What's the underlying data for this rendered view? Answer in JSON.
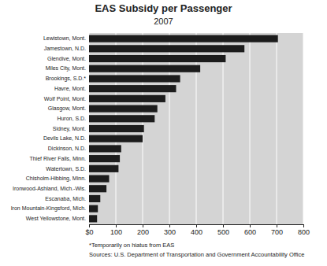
{
  "chart_data": {
    "type": "bar",
    "orientation": "horizontal",
    "title": "EAS Subsidy per Passenger",
    "subtitle": "2007",
    "categories": [
      "Lewistown, Mont.",
      "Jamestown, N.D.",
      "Glendive, Mont.",
      "Miles City, Mont.",
      "Brookings, S.D.*",
      "Havre, Mont.",
      "Wolf Point, Mont.",
      "Glasgow, Mont.",
      "Huron, S.D.",
      "Sidney, Mont.",
      "Devils Lake, N.D.",
      "Dickinson, N.D.",
      "Thief River Falls, Minn.",
      "Watertown, S.D.",
      "Chisholm-Hibbing, Minn.",
      "Ironwood-Ashland, Mich.-Wis.",
      "Escanaba, Mich.",
      "Iron Mountain-Kingsford, Mich.",
      "West Yellowstone, Mont."
    ],
    "values": [
      705,
      580,
      510,
      415,
      340,
      325,
      285,
      255,
      245,
      205,
      200,
      120,
      115,
      110,
      75,
      65,
      42,
      33,
      30
    ],
    "color": "#1c1c1c",
    "xlim": [
      0,
      800
    ],
    "xticks": [
      {
        "value": 0,
        "label": "$0"
      },
      {
        "value": 100,
        "label": "100"
      },
      {
        "value": 200,
        "label": "200"
      },
      {
        "value": 300,
        "label": "300"
      },
      {
        "value": 400,
        "label": "400"
      },
      {
        "value": 500,
        "label": "500"
      },
      {
        "value": 600,
        "label": "600"
      },
      {
        "value": 700,
        "label": "700"
      },
      {
        "value": 800,
        "label": "800"
      }
    ],
    "grid": true,
    "annotations": [
      "*Temporarily on hiatus from EAS",
      "Sources: U.S. Department of Transportation and Government Accountability Office"
    ]
  }
}
